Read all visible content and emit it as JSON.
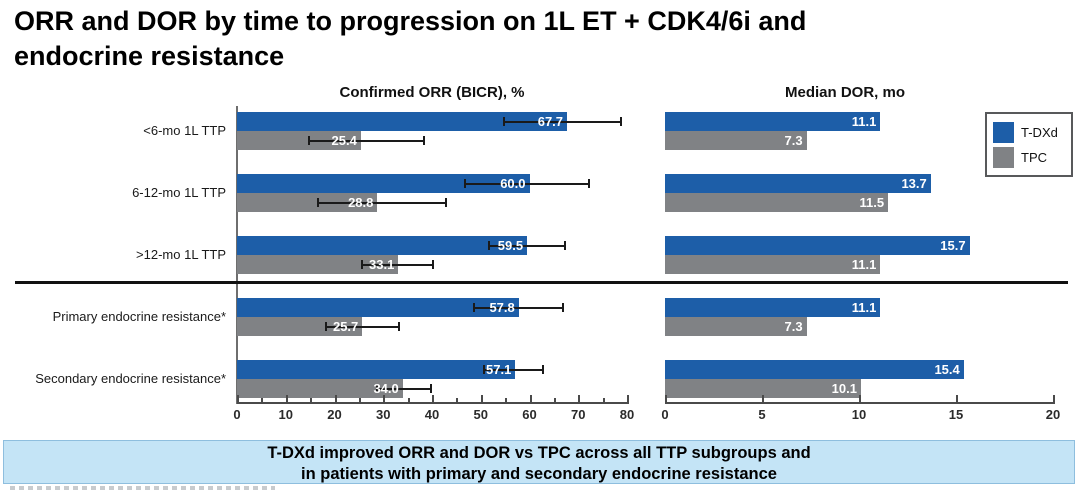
{
  "slide_title_line1": "ORR and DOR by time to progression on 1L ET + CDK4/6i and",
  "slide_title_line2": "endocrine resistance",
  "legend": {
    "items": [
      {
        "label": "T-DXd",
        "color": "#1d5ea8"
      },
      {
        "label": "TPC",
        "color": "#808285"
      }
    ]
  },
  "banner": {
    "line1": "T-DXd improved ORR and DOR vs TPC across all TTP subgroups and",
    "line2": "in patients with primary and secondary endocrine resistance",
    "background": "#c4e4f6"
  },
  "colors": {
    "tdxd_blue": "#1d5ea8",
    "tpc_gray": "#808285",
    "banner_blue": "#c4e4f6",
    "divider_black": "#111111"
  },
  "chart_data": [
    {
      "type": "bar",
      "orientation": "horizontal",
      "title": "Confirmed ORR (BICR), %",
      "categories": [
        "<6-mo 1L TTP",
        "6-12-mo 1L TTP",
        ">12-mo 1L TTP",
        "Primary endocrine resistance*",
        "Secondary endocrine resistance*"
      ],
      "series": [
        {
          "name": "T-DXd",
          "color": "#1d5ea8",
          "values": [
            67.7,
            60.0,
            59.5,
            57.8,
            57.1
          ],
          "error_low": [
            54.5,
            46.5,
            51.5,
            48.5,
            50.5
          ],
          "error_high": [
            79.0,
            72.5,
            67.5,
            67.0,
            63.0
          ]
        },
        {
          "name": "TPC",
          "color": "#808285",
          "values": [
            25.4,
            28.8,
            33.1,
            25.7,
            34.0
          ],
          "error_low": [
            14.5,
            16.5,
            25.5,
            18.0,
            28.5
          ],
          "error_high": [
            38.5,
            43.0,
            40.5,
            33.5,
            40.0
          ]
        }
      ],
      "xlim": [
        0,
        80
      ],
      "xticks": [
        0,
        10,
        20,
        30,
        40,
        50,
        60,
        70,
        80
      ],
      "minor_xticks": [
        5,
        15,
        25,
        35,
        45,
        55,
        65,
        75
      ],
      "value_labels": true,
      "grid": false,
      "divider_after_category_index": 2
    },
    {
      "type": "bar",
      "orientation": "horizontal",
      "title": "Median DOR, mo",
      "categories": [
        "<6-mo 1L TTP",
        "6-12-mo 1L TTP",
        ">12-mo 1L TTP",
        "Primary endocrine resistance*",
        "Secondary endocrine resistance*"
      ],
      "series": [
        {
          "name": "T-DXd",
          "color": "#1d5ea8",
          "values": [
            11.1,
            13.7,
            15.7,
            11.1,
            15.4
          ]
        },
        {
          "name": "TPC",
          "color": "#808285",
          "values": [
            7.3,
            11.5,
            11.1,
            7.3,
            10.1
          ]
        }
      ],
      "xlim": [
        0,
        20
      ],
      "xticks": [
        0,
        5,
        10,
        15,
        20
      ],
      "value_labels": true,
      "grid": false,
      "legend_position": "upper right",
      "divider_after_category_index": 2
    }
  ]
}
